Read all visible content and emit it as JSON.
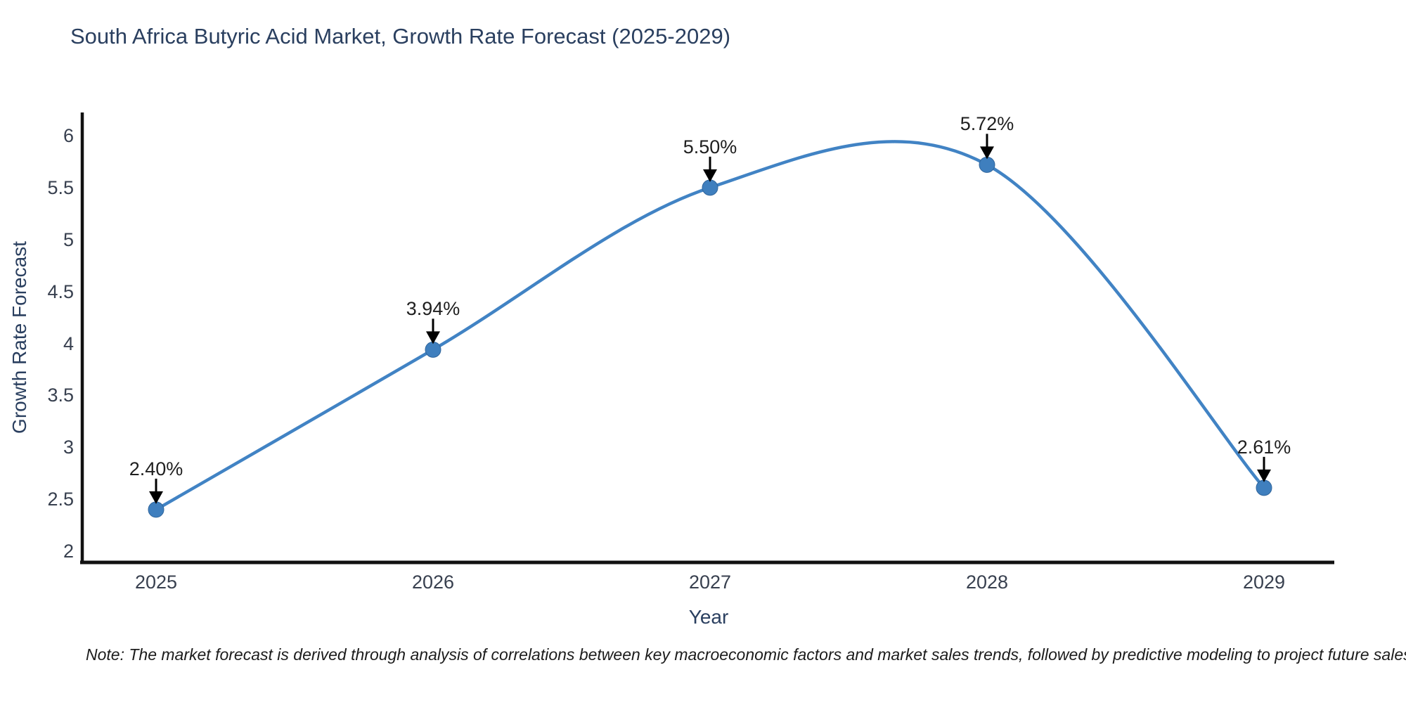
{
  "title": "South Africa Butyric Acid Market, Growth Rate Forecast (2025-2029)",
  "note": "Note: The market forecast is derived through analysis of correlations between key macroeconomic factors and market sales trends, followed by predictive modeling to project future sales",
  "chart_data": {
    "type": "line",
    "curve": "spline",
    "title": "South Africa Butyric Acid Market, Growth Rate Forecast (2025-2029)",
    "xlabel": "Year",
    "ylabel": "Growth Rate Forecast",
    "categories": [
      "2025",
      "2026",
      "2027",
      "2028",
      "2029"
    ],
    "values": [
      2.4,
      3.94,
      5.5,
      5.72,
      2.61
    ],
    "point_labels": [
      "2.40%",
      "3.94%",
      "5.50%",
      "5.72%",
      "2.61%"
    ],
    "yticks": [
      2,
      2.5,
      3,
      3.5,
      4,
      4.5,
      5,
      5.5,
      6
    ],
    "ytick_labels": [
      "2",
      "2.5",
      "3",
      "3.5",
      "4",
      "4.5",
      "5",
      "5.5",
      "6"
    ],
    "ylim": [
      2,
      6
    ],
    "grid": false,
    "legend": "none",
    "line_color": "#4183c4",
    "marker_color": "#3f7fbe",
    "marker_edge_color": "#31669c",
    "axis_color": "#111111",
    "arrow_color": "#000000"
  }
}
